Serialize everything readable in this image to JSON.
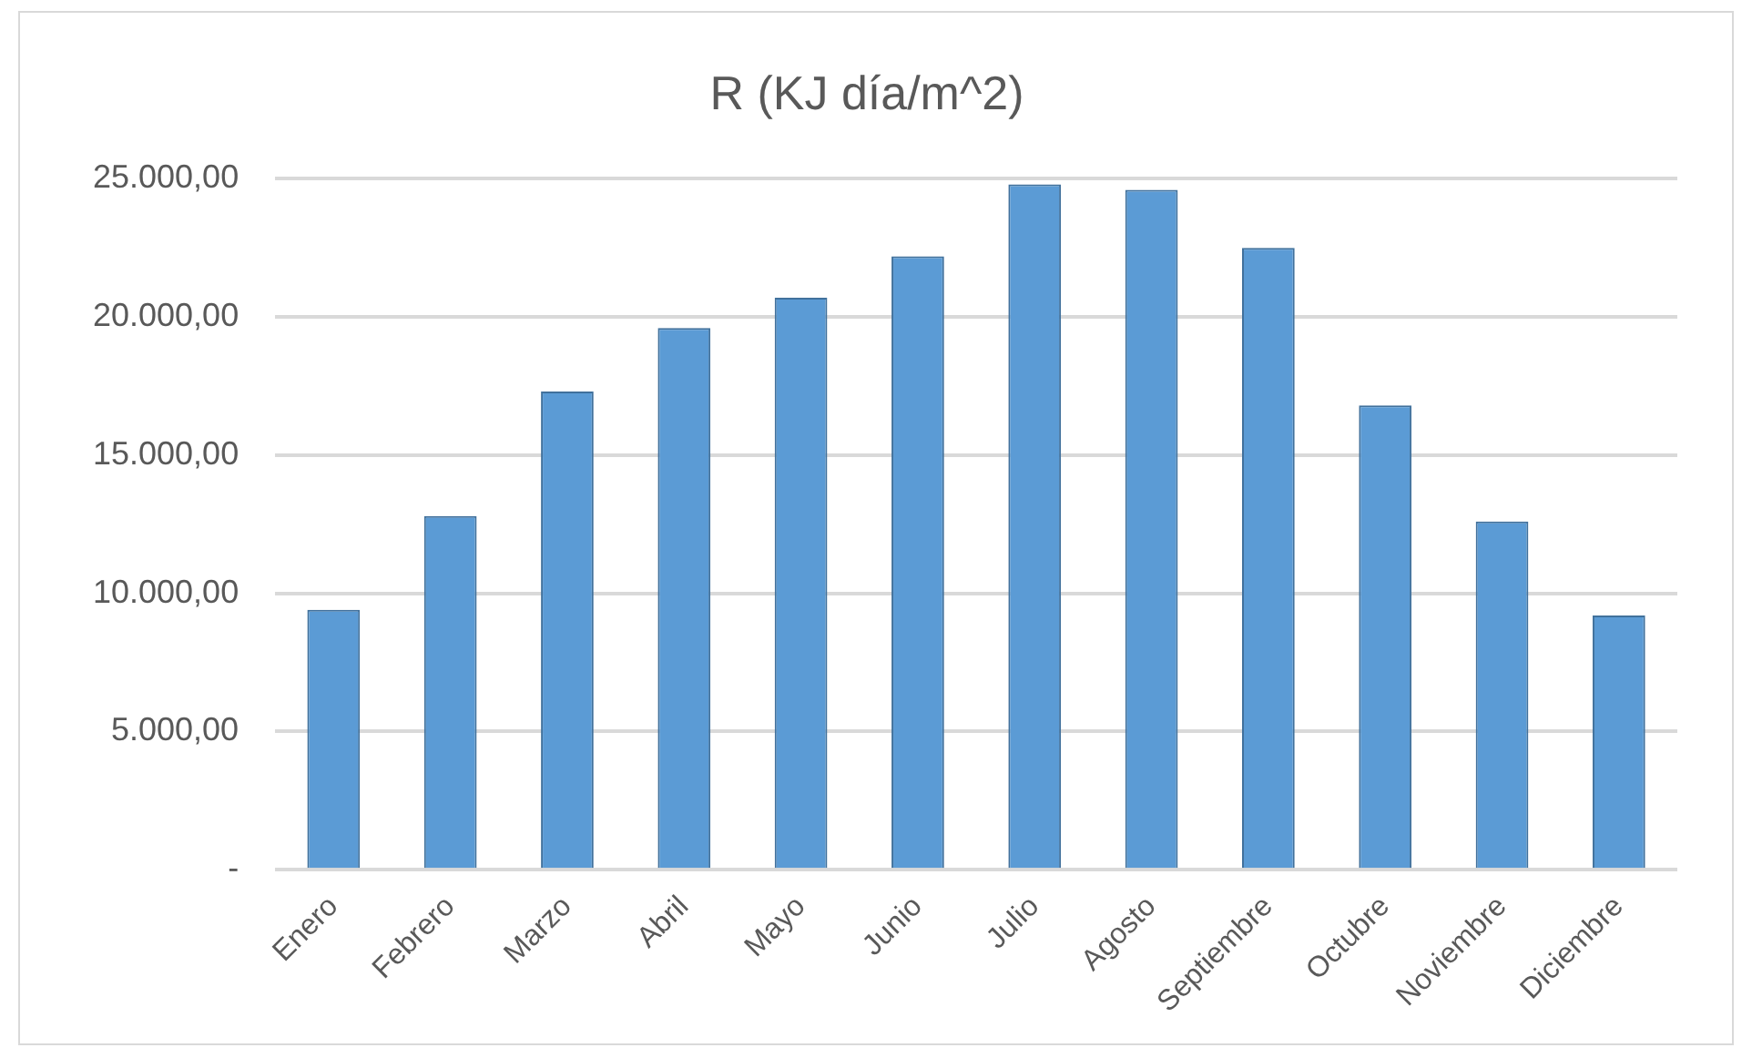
{
  "chart_data": {
    "type": "bar",
    "title": "R (KJ día/m^2)",
    "categories": [
      "Enero",
      "Febrero",
      "Marzo",
      "Abril",
      "Mayo",
      "Junio",
      "Julio",
      "Agosto",
      "Septiembre",
      "Octubre",
      "Noviembre",
      "Diciembre"
    ],
    "values": [
      9400,
      12800,
      17300,
      19600,
      20700,
      22200,
      24800,
      24600,
      22500,
      16800,
      12600,
      9200
    ],
    "color": "#5b9bd5",
    "ylim": [
      0,
      25000
    ],
    "yticks": [
      {
        "value": 0,
        "label": "-"
      },
      {
        "value": 5000,
        "label": "5.000,00"
      },
      {
        "value": 10000,
        "label": "10.000,00"
      },
      {
        "value": 15000,
        "label": "15.000,00"
      },
      {
        "value": 20000,
        "label": "20.000,00"
      },
      {
        "value": 25000,
        "label": "25.000,00"
      }
    ],
    "grid": "y"
  }
}
